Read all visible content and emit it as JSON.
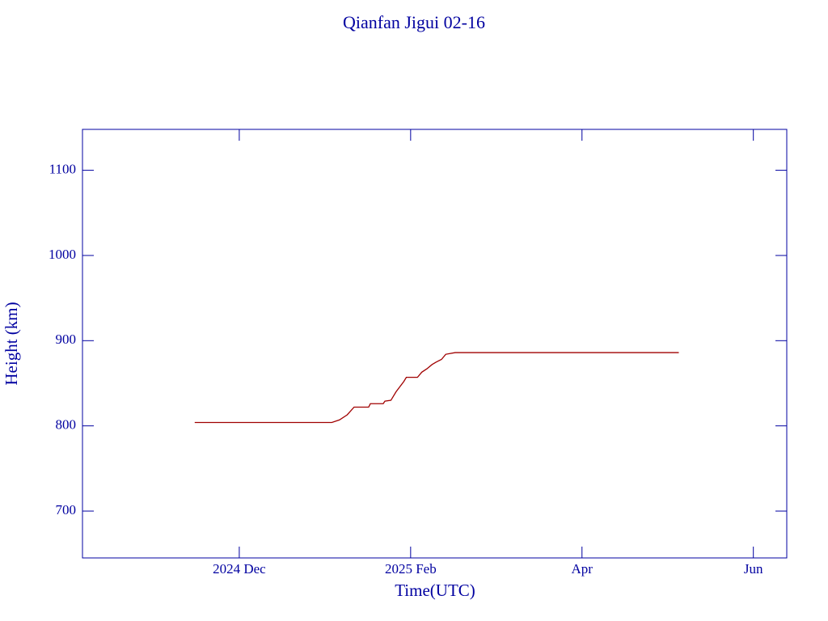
{
  "chart_data": {
    "type": "line",
    "title": "Qianfan Jigui 02-16",
    "x_label": "Time(UTC)",
    "y_label": "Height (km)",
    "x": [
      11.48,
      13.08,
      13.17,
      13.26,
      13.34,
      13.51,
      13.53,
      13.68,
      13.7,
      13.77,
      13.83,
      13.92,
      13.95,
      14.08,
      14.13,
      14.19,
      14.25,
      14.3,
      14.36,
      14.41,
      14.52,
      15.43,
      17.13
    ],
    "series": [
      {
        "color": "#a00000",
        "values": [
          804,
          804,
          807,
          813,
          822,
          822,
          826,
          826,
          829,
          830,
          840,
          852,
          857,
          857,
          863,
          867,
          872,
          875,
          878,
          884,
          886,
          886,
          886
        ]
      }
    ],
    "xlim": [
      10.17,
      18.39
    ],
    "xticks": [
      {
        "value": 12,
        "label": "2024 Dec"
      },
      {
        "value": 14,
        "label": "2025 Feb"
      },
      {
        "value": 16,
        "label": "Apr"
      },
      {
        "value": 18,
        "label": "Jun"
      }
    ],
    "ylim": [
      645,
      1148
    ],
    "yticks": [
      700,
      800,
      900,
      1000,
      1100
    ],
    "axis_color": "#0000a0"
  }
}
